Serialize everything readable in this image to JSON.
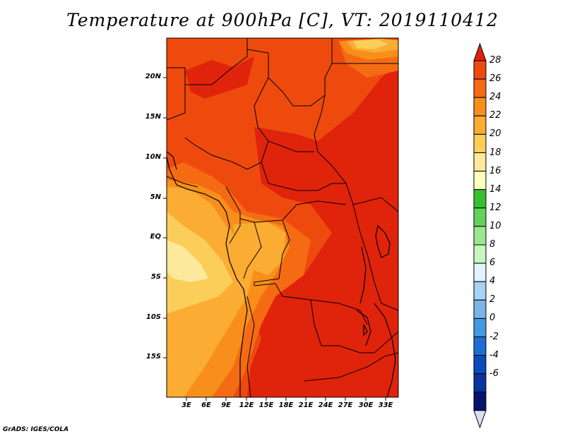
{
  "title": "Temperature at 900hPa [C], VT: 2019110412",
  "credit": "GrADS: IGES/COLA",
  "lat_labels": [
    "20N",
    "15N",
    "10N",
    "5N",
    "EQ",
    "5S",
    "10S",
    "15S"
  ],
  "lon_labels": [
    "3E",
    "6E",
    "9E",
    "12E",
    "15E",
    "18E",
    "21E",
    "24E",
    "27E",
    "30E",
    "33E"
  ],
  "colorbar": {
    "levels": [
      "28",
      "26",
      "24",
      "22",
      "20",
      "18",
      "16",
      "14",
      "12",
      "10",
      "8",
      "6",
      "4",
      "2",
      "0",
      "-2",
      "-4",
      "-6"
    ],
    "colors": [
      "#e0230b",
      "#ee4a0e",
      "#f56b13",
      "#f88f1b",
      "#fbac32",
      "#fbce5a",
      "#fde99b",
      "#fefec0",
      "#36c02f",
      "#5fd35a",
      "#9de690",
      "#c8f6c0",
      "#e2f3ff",
      "#a6d2f3",
      "#78b6ea",
      "#4698e0",
      "#1e6ed2",
      "#0a4cbc",
      "#0834a0",
      "#08136e",
      "#dcdcf2"
    ]
  },
  "map": {
    "field": "Temperature at 900hPa",
    "units": "C",
    "valid_time": "2019110412",
    "lon_range": [
      0,
      35
    ],
    "lat_range": [
      -20,
      24
    ]
  }
}
